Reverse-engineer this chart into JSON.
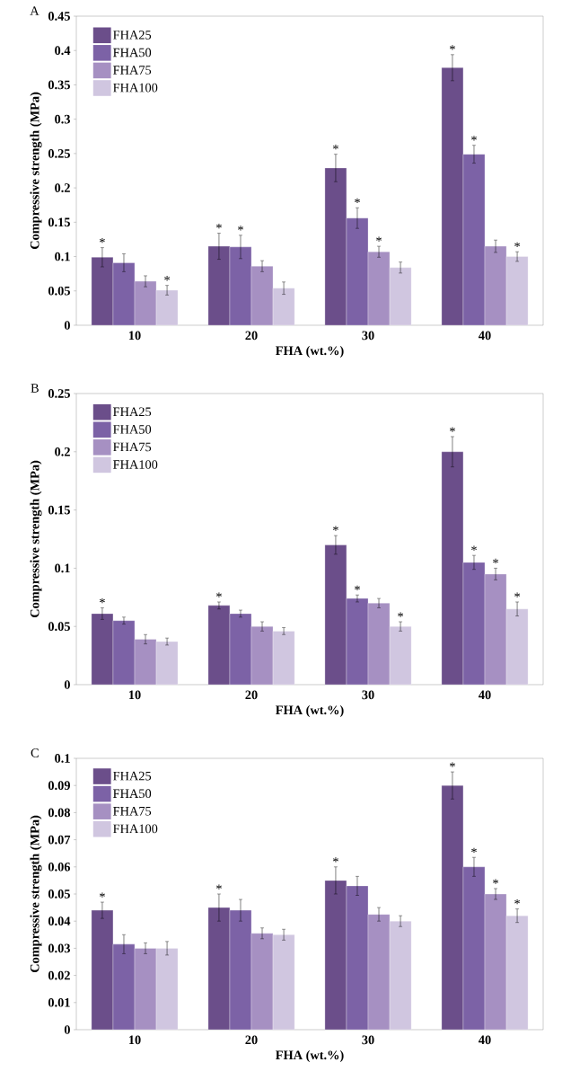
{
  "chart_data": [
    {
      "type": "bar",
      "title": "A",
      "xlabel": "FHA (wt.%)",
      "ylabel": "Compressive strength (MPa)",
      "categories": [
        "10",
        "20",
        "30",
        "40"
      ],
      "ylim": [
        0,
        0.45
      ],
      "yticks": [
        0,
        0.05,
        0.1,
        0.15,
        0.2,
        0.25,
        0.3,
        0.35,
        0.4,
        0.45
      ],
      "legend": "top left",
      "series": [
        {
          "name": "FHA25",
          "color": "#6b4e8a",
          "values": [
            0.099,
            0.115,
            0.229,
            0.375
          ],
          "errors": [
            0.014,
            0.019,
            0.02,
            0.019
          ],
          "value_labels": [
            "*",
            "*",
            "*",
            "*"
          ]
        },
        {
          "name": "FHA50",
          "color": "#7c62a6",
          "values": [
            0.091,
            0.114,
            0.156,
            0.249
          ],
          "errors": [
            0.013,
            0.017,
            0.015,
            0.013
          ],
          "value_labels": [
            null,
            "*",
            "*",
            "*"
          ]
        },
        {
          "name": "FHA75",
          "color": "#a690c2",
          "values": [
            0.064,
            0.086,
            0.107,
            0.115
          ],
          "errors": [
            0.008,
            0.008,
            0.008,
            0.009
          ],
          "value_labels": [
            null,
            null,
            "*",
            null
          ]
        },
        {
          "name": "FHA100",
          "color": "#d0c6e0",
          "values": [
            0.051,
            0.054,
            0.084,
            0.1
          ],
          "errors": [
            0.007,
            0.009,
            0.008,
            0.007
          ],
          "value_labels": [
            "*",
            null,
            null,
            "*"
          ]
        }
      ]
    },
    {
      "type": "bar",
      "title": "B",
      "xlabel": "FHA (wt.%)",
      "ylabel": "Compressive strength (MPa)",
      "categories": [
        "10",
        "20",
        "30",
        "40"
      ],
      "ylim": [
        0,
        0.25
      ],
      "yticks": [
        0,
        0.05,
        0.1,
        0.15,
        0.2,
        0.25
      ],
      "legend": "top left",
      "series": [
        {
          "name": "FHA25",
          "color": "#6b4e8a",
          "values": [
            0.061,
            0.068,
            0.12,
            0.2
          ],
          "errors": [
            0.005,
            0.003,
            0.008,
            0.013
          ],
          "value_labels": [
            "*",
            "*",
            "*",
            "*"
          ]
        },
        {
          "name": "FHA50",
          "color": "#7c62a6",
          "values": [
            0.055,
            0.061,
            0.074,
            0.105
          ],
          "errors": [
            0.003,
            0.003,
            0.003,
            0.006
          ],
          "value_labels": [
            null,
            null,
            "*",
            "*"
          ]
        },
        {
          "name": "FHA75",
          "color": "#a690c2",
          "values": [
            0.039,
            0.05,
            0.07,
            0.095
          ],
          "errors": [
            0.004,
            0.004,
            0.004,
            0.005
          ],
          "value_labels": [
            null,
            null,
            null,
            "*"
          ]
        },
        {
          "name": "FHA100",
          "color": "#d0c6e0",
          "values": [
            0.037,
            0.046,
            0.05,
            0.065
          ],
          "errors": [
            0.003,
            0.003,
            0.004,
            0.006
          ],
          "value_labels": [
            null,
            null,
            "*",
            "*"
          ]
        }
      ]
    },
    {
      "type": "bar",
      "title": "C",
      "xlabel": "FHA (wt.%)",
      "ylabel": "Compressive strength (MPa)",
      "categories": [
        "10",
        "20",
        "30",
        "40"
      ],
      "ylim": [
        0,
        0.1
      ],
      "yticks": [
        0,
        0.01,
        0.02,
        0.03,
        0.04,
        0.05,
        0.06,
        0.07,
        0.08,
        0.09,
        0.1
      ],
      "legend": "top left",
      "series": [
        {
          "name": "FHA25",
          "color": "#6b4e8a",
          "values": [
            0.044,
            0.045,
            0.055,
            0.09
          ],
          "errors": [
            0.003,
            0.005,
            0.005,
            0.005
          ],
          "value_labels": [
            "*",
            "*",
            "*",
            "*"
          ]
        },
        {
          "name": "FHA50",
          "color": "#7c62a6",
          "values": [
            0.0315,
            0.044,
            0.053,
            0.06
          ],
          "errors": [
            0.0035,
            0.004,
            0.0035,
            0.0035
          ],
          "value_labels": [
            null,
            null,
            null,
            "*"
          ]
        },
        {
          "name": "FHA75",
          "color": "#a690c2",
          "values": [
            0.03,
            0.0355,
            0.0425,
            0.05
          ],
          "errors": [
            0.002,
            0.002,
            0.0025,
            0.002
          ],
          "value_labels": [
            null,
            null,
            null,
            "*"
          ]
        },
        {
          "name": "FHA100",
          "color": "#d0c6e0",
          "values": [
            0.03,
            0.035,
            0.04,
            0.042
          ],
          "errors": [
            0.0025,
            0.002,
            0.002,
            0.0025
          ],
          "value_labels": [
            null,
            null,
            null,
            "*"
          ]
        }
      ]
    }
  ]
}
